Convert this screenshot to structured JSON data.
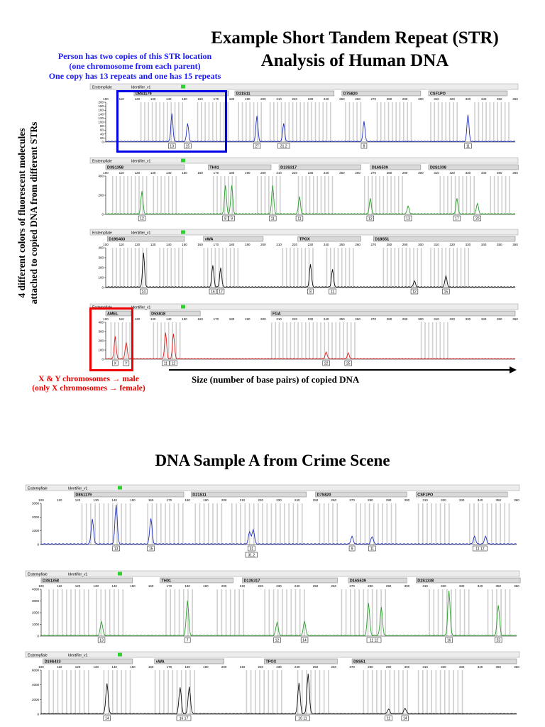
{
  "top_title": [
    "Example Short Tandem Repeat (STR)",
    "Analysis of Human DNA"
  ],
  "annotation_top": [
    "Person has two copies of this STR location",
    "(one chromosome from each parent)",
    "One copy has 13 repeats and one has 15 repeats"
  ],
  "side_label": [
    "4 different colors of fluorescent molecules",
    "attached to copied DNA from different STRs"
  ],
  "annotation_red": [
    "X & Y chromosomes → male",
    "(only X chromosomes → female)"
  ],
  "xaxis_label": "Size (number of base pairs) of copied DNA",
  "bottom_title": "DNA Sample A from Crime Scene",
  "colors": {
    "blue": "#1f2fbf",
    "green": "#2ca02c",
    "black": "#111111",
    "red": "#e02020",
    "grid": "#cfcfcf",
    "header": "#d9d9d9",
    "highlight_blue": "#0000e6",
    "highlight_red": "#ee0000"
  },
  "panel_header": {
    "left": "Erstempfiale",
    "id": "Identifier_v1"
  },
  "panels_top": [
    {
      "key": "blue",
      "color": "blue",
      "ymax": 200,
      "yticks": [
        0,
        20,
        40,
        60,
        80,
        100,
        120,
        140,
        160,
        180,
        200
      ],
      "loci": [
        "D8S1179",
        "D21S11",
        "D7S820",
        "CSF1PO"
      ],
      "peaks": [
        [
          142,
          0.7
        ],
        [
          152,
          0.45
        ],
        [
          196,
          0.65
        ],
        [
          213,
          0.45
        ],
        [
          264,
          0.5
        ],
        [
          330,
          0.68
        ]
      ],
      "alleles": [
        [
          142,
          "13"
        ],
        [
          152,
          "15"
        ],
        [
          196,
          "27"
        ],
        [
          213,
          "31.2"
        ],
        [
          264,
          "8"
        ],
        [
          330,
          "11"
        ]
      ]
    },
    {
      "key": "green",
      "color": "green",
      "ymax": 400,
      "yticks": [
        0,
        200,
        400
      ],
      "loci": [
        "D3S1358",
        "TH01",
        "D13S317",
        "D16S539",
        "D2S1338"
      ],
      "peaks": [
        [
          123,
          0.6
        ],
        [
          176,
          0.75
        ],
        [
          180,
          0.75
        ],
        [
          206,
          0.75
        ],
        [
          223,
          0.45
        ],
        [
          268,
          0.4
        ],
        [
          292,
          0.2
        ],
        [
          323,
          0.4
        ],
        [
          336,
          0.28
        ]
      ],
      "alleles": [
        [
          123,
          "12"
        ],
        [
          176,
          "8"
        ],
        [
          180,
          "9"
        ],
        [
          206,
          "11"
        ],
        [
          223,
          "11"
        ],
        [
          268,
          "12"
        ],
        [
          292,
          "13"
        ],
        [
          323,
          "17"
        ],
        [
          336,
          "20"
        ]
      ]
    },
    {
      "key": "black",
      "color": "black",
      "ymax": 400,
      "yticks": [
        0,
        100,
        200,
        300,
        400
      ],
      "loci": [
        "D19S433",
        "vWA",
        "TPOX",
        "D18S51"
      ],
      "peaks": [
        [
          124,
          0.85
        ],
        [
          168,
          0.55
        ],
        [
          173,
          0.48
        ],
        [
          230,
          0.57
        ],
        [
          244,
          0.44
        ],
        [
          296,
          0.15
        ],
        [
          316,
          0.28
        ]
      ],
      "alleles": [
        [
          124,
          "14"
        ],
        [
          168,
          "16"
        ],
        [
          173,
          "17"
        ],
        [
          230,
          "8"
        ],
        [
          244,
          "11"
        ],
        [
          296,
          "12"
        ],
        [
          316,
          "15"
        ]
      ]
    },
    {
      "key": "red",
      "color": "red",
      "ymax": 400,
      "yticks": [
        0,
        100,
        200,
        300,
        400
      ],
      "loci": [
        "AMEL",
        "D5S818",
        "FGA"
      ],
      "peaks": [
        [
          106,
          0.6
        ],
        [
          113,
          0.45
        ],
        [
          138,
          0.7
        ],
        [
          143,
          0.68
        ],
        [
          240,
          0.18
        ],
        [
          254,
          0.15
        ]
      ],
      "alleles": [
        [
          106,
          "X"
        ],
        [
          113,
          "Y"
        ],
        [
          138,
          "11"
        ],
        [
          143,
          "12"
        ],
        [
          240,
          "22"
        ],
        [
          254,
          "25"
        ]
      ]
    }
  ],
  "panels_bottom": [
    {
      "key": "blue",
      "color": "blue",
      "ymax": 3000,
      "yticks": [
        0,
        1000,
        2000,
        3000
      ],
      "loci": [
        "D8S1179",
        "D21S11",
        "D7S820",
        "CSF1PO"
      ],
      "peaks": [
        [
          128,
          0.6
        ],
        [
          141,
          0.95
        ],
        [
          160,
          0.62
        ],
        [
          214,
          0.3
        ],
        [
          216,
          0.35
        ],
        [
          270,
          0.18
        ],
        [
          281,
          0.18
        ],
        [
          337,
          0.18
        ],
        [
          343,
          0.18
        ]
      ],
      "alleles": [
        [
          141,
          "13"
        ],
        [
          160,
          "15"
        ],
        [
          215,
          "31"
        ],
        [
          270,
          "9"
        ],
        [
          281,
          "11"
        ],
        [
          340,
          "11 12"
        ]
      ],
      "allele2": [
        [
          215,
          "31.2"
        ]
      ]
    },
    {
      "key": "green",
      "color": "green",
      "ymax": 4000,
      "yticks": [
        0,
        1000,
        2000,
        3000,
        4000
      ],
      "loci": [
        "D3S1358",
        "TH01",
        "D13S317",
        "D16S539",
        "D2S1338"
      ],
      "peaks": [
        [
          133,
          0.3
        ],
        [
          180,
          0.75
        ],
        [
          229,
          0.28
        ],
        [
          244,
          0.3
        ],
        [
          279,
          0.7
        ],
        [
          286,
          0.6
        ],
        [
          323,
          0.95
        ],
        [
          350,
          0.65
        ]
      ],
      "alleles": [
        [
          133,
          "13"
        ],
        [
          180,
          "7"
        ],
        [
          229,
          "12"
        ],
        [
          244,
          "14"
        ],
        [
          282,
          "11 12"
        ],
        [
          323,
          "16"
        ],
        [
          350,
          "23"
        ]
      ]
    },
    {
      "key": "black",
      "color": "black",
      "ymax": 6000,
      "yticks": [
        0,
        2000,
        4000,
        6000
      ],
      "loci": [
        "D19S433",
        "vWA",
        "TPOX",
        "D8S51"
      ],
      "peaks": [
        [
          136,
          0.68
        ],
        [
          176,
          0.6
        ],
        [
          181,
          0.6
        ],
        [
          241,
          0.7
        ],
        [
          246,
          0.9
        ],
        [
          290,
          0.1
        ],
        [
          299,
          0.12
        ]
      ],
      "alleles": [
        [
          136,
          "14"
        ],
        [
          178,
          "16 17"
        ],
        [
          243,
          "10 11"
        ],
        [
          290,
          "11"
        ],
        [
          299,
          "14"
        ]
      ]
    }
  ],
  "xticks": [
    100,
    110,
    120,
    130,
    140,
    150,
    160,
    170,
    180,
    190,
    200,
    210,
    220,
    230,
    240,
    250,
    260,
    270,
    280,
    290,
    300,
    310,
    320,
    330,
    340,
    350,
    360
  ]
}
